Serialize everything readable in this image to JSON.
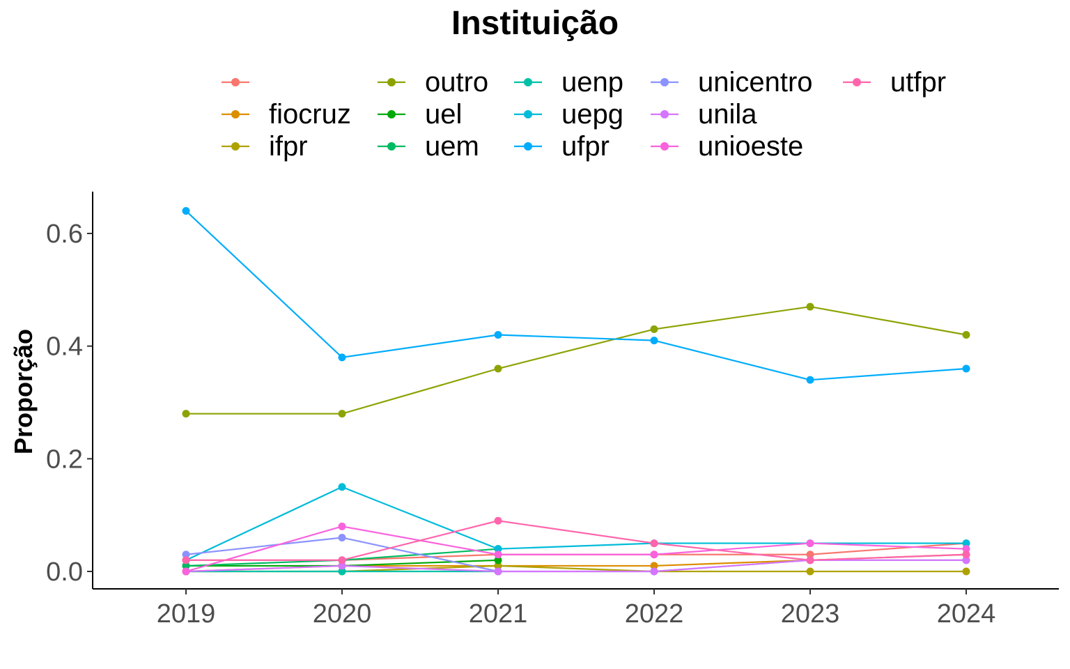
{
  "chart_data": {
    "type": "line",
    "legend_title": "Instituição",
    "ylabel": "Proporção",
    "xlabel": "",
    "x": [
      2019,
      2020,
      2021,
      2022,
      2023,
      2024
    ],
    "x_ticks": [
      "2019",
      "2020",
      "2021",
      "2022",
      "2023",
      "2024"
    ],
    "y_ticks": [
      "0.0",
      "0.2",
      "0.4",
      "0.6"
    ],
    "ylim": [
      -0.03,
      0.67
    ],
    "grid": false,
    "legend_position": "top",
    "series": [
      {
        "name": "",
        "color": "#F8766D",
        "values": [
          0.02,
          0.02,
          0.03,
          0.03,
          0.03,
          0.05
        ]
      },
      {
        "name": "fiocruz",
        "color": "#DB8E00",
        "values": [
          0.0,
          0.01,
          0.01,
          0.01,
          0.02,
          0.03
        ]
      },
      {
        "name": "ifpr",
        "color": "#AEA200",
        "values": [
          0.0,
          0.0,
          0.01,
          0.0,
          0.0,
          0.0
        ]
      },
      {
        "name": "outro",
        "color": "#8DA304",
        "values": [
          0.28,
          0.28,
          0.36,
          0.43,
          0.47,
          0.42
        ]
      },
      {
        "name": "uel",
        "color": "#00A908",
        "values": [
          0.01,
          0.01,
          0.02,
          null,
          null,
          null
        ]
      },
      {
        "name": "uem",
        "color": "#00BB62",
        "values": [
          0.01,
          0.02,
          0.04,
          null,
          null,
          null
        ]
      },
      {
        "name": "uenp",
        "color": "#00C1A7",
        "values": [
          0.0,
          0.0,
          0.0,
          null,
          null,
          null
        ]
      },
      {
        "name": "uepg",
        "color": "#00BBDA",
        "values": [
          0.02,
          0.15,
          0.04,
          0.05,
          0.05,
          0.05
        ]
      },
      {
        "name": "ufpr",
        "color": "#00ACFC",
        "values": [
          0.64,
          0.38,
          0.42,
          0.41,
          0.34,
          0.36
        ]
      },
      {
        "name": "unicentro",
        "color": "#8B93FF",
        "values": [
          0.03,
          0.06,
          0.0,
          0.0,
          0.02,
          0.02
        ]
      },
      {
        "name": "unila",
        "color": "#D575FE",
        "values": [
          0.0,
          0.01,
          0.0,
          0.0,
          0.02,
          0.02
        ]
      },
      {
        "name": "unioeste",
        "color": "#F962DD",
        "values": [
          0.0,
          0.08,
          0.03,
          0.03,
          0.05,
          0.04
        ]
      },
      {
        "name": "utfpr",
        "color": "#FF65AC",
        "values": [
          0.02,
          0.02,
          0.09,
          0.05,
          0.02,
          0.03
        ]
      }
    ]
  }
}
